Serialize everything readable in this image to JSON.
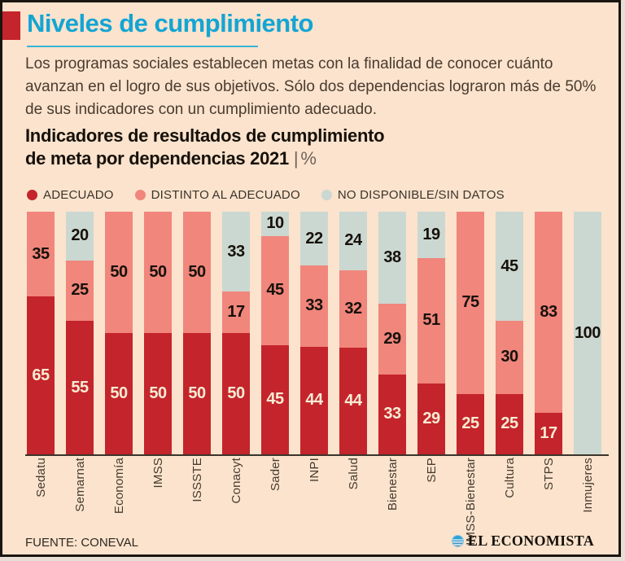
{
  "header": {
    "title": "Niveles de cumplimiento"
  },
  "intro": "Los programas sociales establecen metas con la finalidad de conocer cuánto avanzan en el logro de sus objetivos. Sólo dos dependencias lograron más de 50% de sus indicadores con un cumplimiento adecuado.",
  "chart_heading": {
    "line1": "Indicadores de resultados de cumplimiento",
    "line2": "de meta  por dependencias 2021",
    "separator": "|",
    "unit": "%"
  },
  "colors": {
    "adequate": "#c4242b",
    "different": "#f0867c",
    "no_data": "#cbd8d1",
    "accent_cyan": "#13a5d4",
    "background": "#fbe3cd"
  },
  "chart_data": {
    "type": "bar",
    "stacked": true,
    "unit": "%",
    "ylim": [
      0,
      100
    ],
    "legend_position": "top",
    "value_labels": "inside",
    "categories": [
      "Sedatu",
      "Semarnat",
      "Economía",
      "IMSS",
      "ISSSTE",
      "Conacyt",
      "Sader",
      "INPI",
      "Salud",
      "Bienestar",
      "SEP",
      "IMSS-Bienestar",
      "Cultura",
      "STPS",
      "Inmujeres"
    ],
    "series": [
      {
        "name": "ADECUADO",
        "color": "#c4242b",
        "label_color": "#f7ecd4",
        "values": [
          65,
          55,
          50,
          50,
          50,
          50,
          45,
          44,
          44,
          33,
          29,
          25,
          25,
          17,
          0
        ]
      },
      {
        "name": "DISTINTO AL ADECUADO",
        "color": "#f0867c",
        "label_color": "#16110a",
        "values": [
          35,
          25,
          50,
          50,
          50,
          17,
          45,
          33,
          32,
          29,
          51,
          75,
          30,
          83,
          0
        ]
      },
      {
        "name": "NO DISPONIBLE/SIN DATOS",
        "color": "#cbd8d1",
        "label_color": "#16110a",
        "values": [
          0,
          20,
          0,
          0,
          0,
          33,
          10,
          22,
          24,
          38,
          19,
          0,
          45,
          0,
          100
        ]
      }
    ]
  },
  "footer": {
    "source": "FUENTE: CONEVAL",
    "brand": "EL ECONOMISTA"
  }
}
